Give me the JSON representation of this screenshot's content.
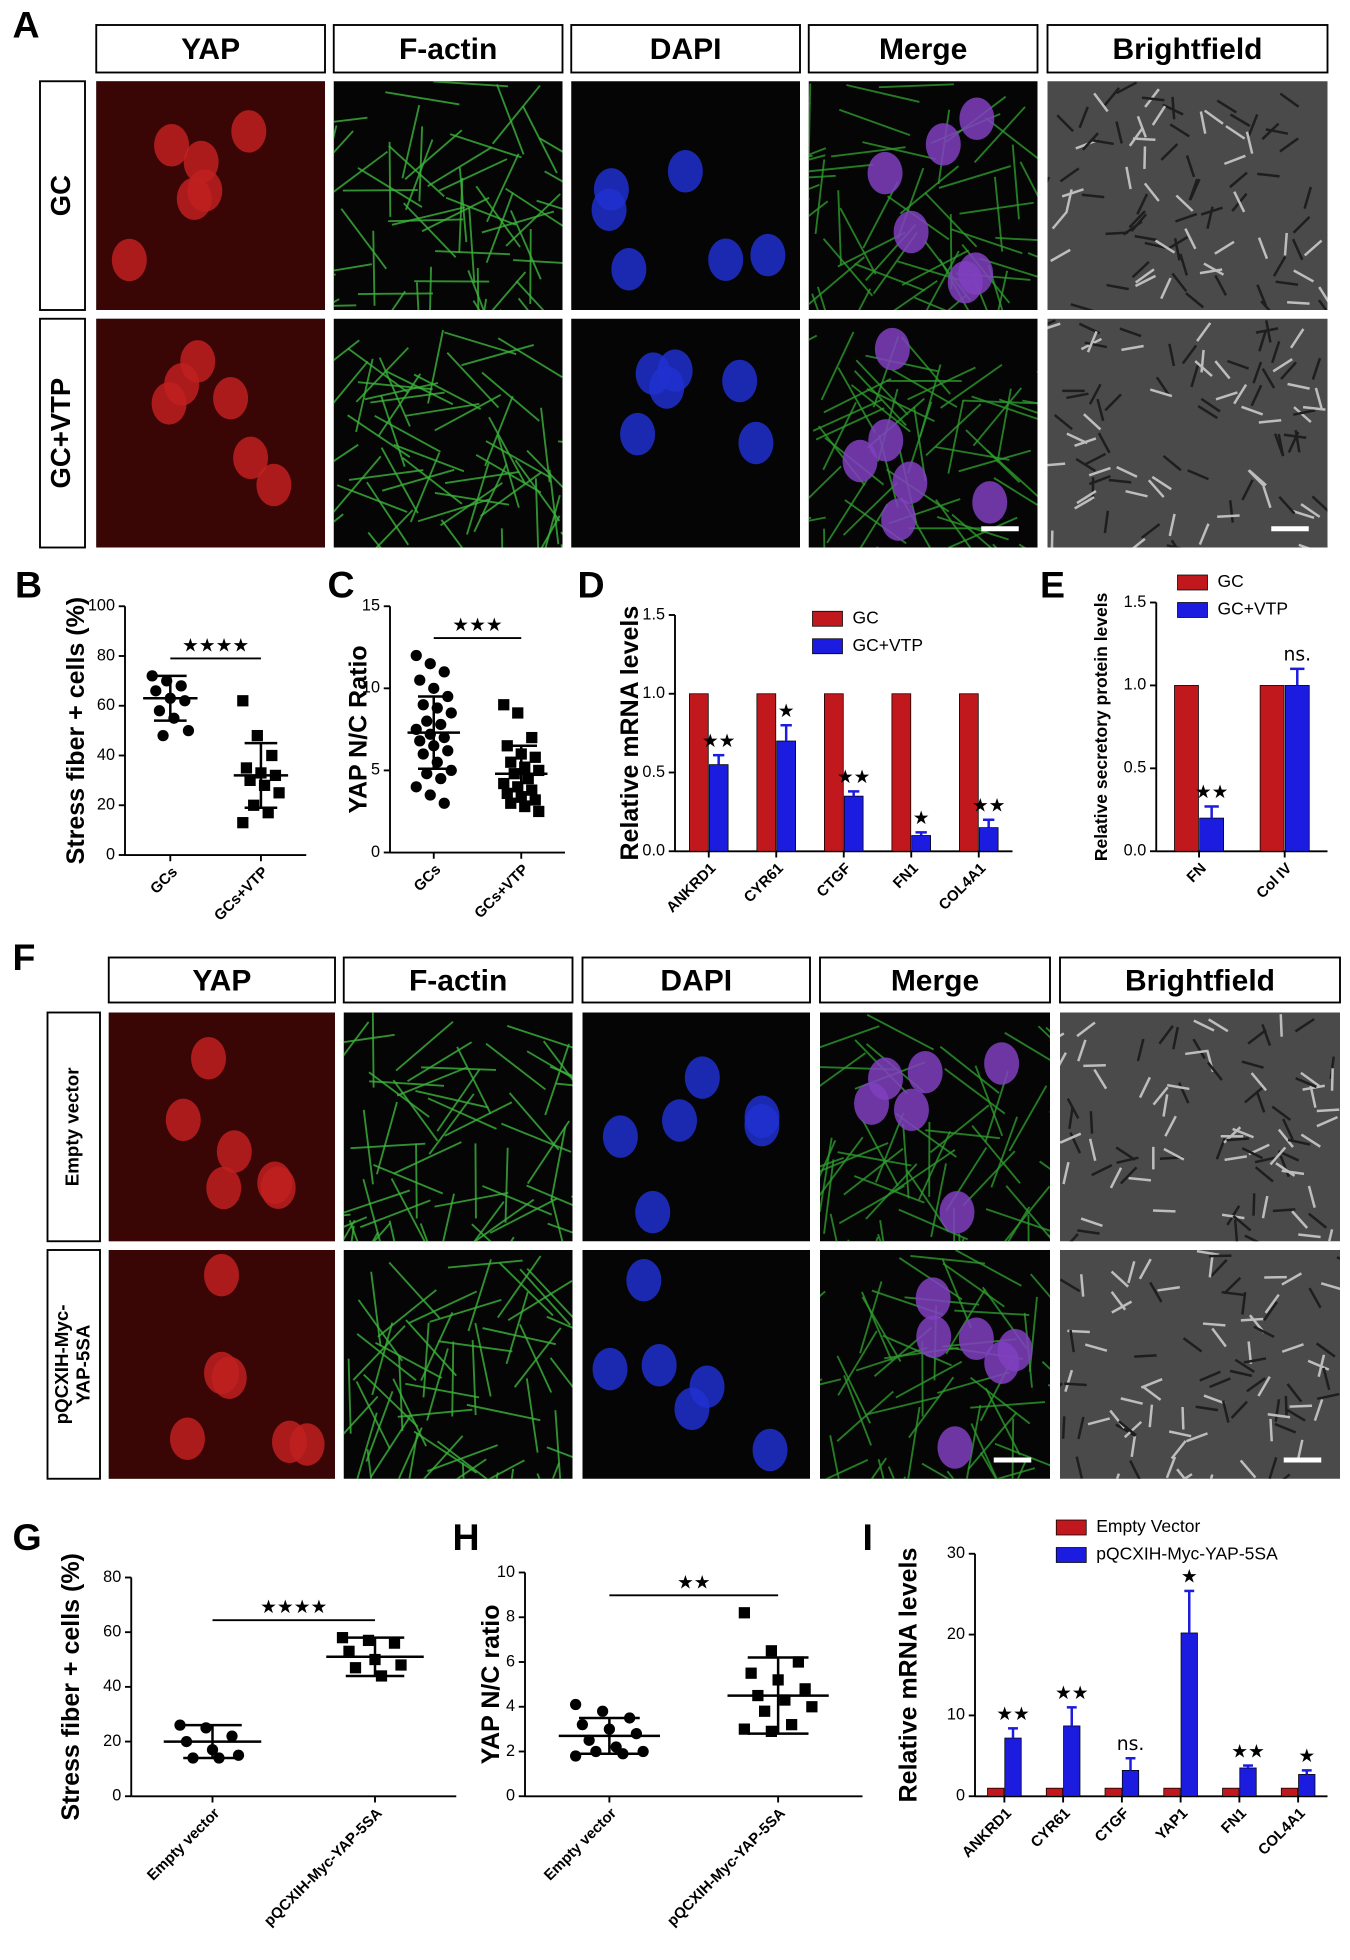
{
  "panel_labels": [
    "A",
    "B",
    "C",
    "D",
    "E",
    "F",
    "G",
    "H",
    "I"
  ],
  "image_panels": [
    {
      "columns": [
        "YAP",
        "F-actin",
        "DAPI",
        "Merge",
        "Brightfield"
      ],
      "rows": [
        [
          "GC"
        ],
        [
          "GC+VTP"
        ]
      ]
    },
    {
      "columns": [
        "YAP",
        "F-actin",
        "DAPI",
        "Merge",
        "Brightfield"
      ],
      "rows": [
        [
          "Empty vector"
        ],
        [
          "pQCXIH-Myc-",
          "YAP-5SA"
        ]
      ]
    }
  ],
  "chart_data": [
    {
      "type": "dotplot",
      "ylabel": "Stress fiber + cells (%)",
      "categories": [
        "GCs",
        "GCs+VTP"
      ],
      "points": [
        [
          72,
          70,
          68,
          66,
          63,
          62,
          58,
          55,
          50,
          48
        ],
        [
          62,
          48,
          40,
          35,
          33,
          32,
          30,
          28,
          25,
          20,
          17,
          13
        ]
      ],
      "means": [
        63,
        32
      ],
      "sds": [
        9,
        13
      ],
      "significance": "★★★★",
      "color": "#000000",
      "ylim": [
        0,
        100
      ],
      "yticks": [
        0,
        20,
        40,
        60,
        80,
        100
      ]
    },
    {
      "type": "dotplot",
      "ylabel": "YAP N/C Ratio",
      "categories": [
        "GCs",
        "GCs+VTP"
      ],
      "points": [
        [
          12,
          11.5,
          11,
          10.5,
          10,
          9.5,
          9,
          8.8,
          8.5,
          8,
          7.8,
          7.5,
          7.2,
          7,
          6.8,
          6.5,
          6.2,
          6,
          5.5,
          5,
          4.8,
          4.5,
          4,
          3.5,
          3
        ],
        [
          9,
          8.5,
          7,
          6.5,
          6,
          5.8,
          5.5,
          5.2,
          5,
          4.8,
          4.5,
          4.2,
          4,
          3.8,
          3.6,
          3.4,
          3.2,
          3,
          2.8,
          2.5
        ]
      ],
      "means": [
        7.3,
        4.8
      ],
      "sds": [
        2.2,
        1.7
      ],
      "significance": "★★★",
      "color": "#000000",
      "ylim": [
        0,
        15
      ],
      "yticks": [
        0,
        5,
        10,
        15
      ]
    },
    {
      "type": "bar",
      "ylabel": "Relative mRNA levels",
      "categories": [
        "ANKRD1",
        "CYR61",
        "CTGF",
        "FN1",
        "COL4A1"
      ],
      "series": [
        {
          "name": "GC",
          "color": "#c0181c",
          "values": [
            1,
            1,
            1,
            1,
            1
          ]
        },
        {
          "name": "GC+VTP",
          "color": "#1c1ce0",
          "values": [
            0.55,
            0.7,
            0.35,
            0.1,
            0.15
          ],
          "errors": [
            0.06,
            0.1,
            0.03,
            0.02,
            0.05
          ],
          "annotations": [
            "★★",
            "★",
            "★★",
            "★",
            "★★"
          ]
        }
      ],
      "ylim": [
        0,
        1.5
      ],
      "yticks": [
        {
          "value": 0,
          "label": "0.0"
        },
        0.5,
        {
          "value": 1,
          "label": "1.0"
        },
        1.5
      ]
    },
    {
      "type": "bar",
      "ylabel": "Relative secretory protein levels",
      "categories": [
        "FN",
        "Col IV"
      ],
      "series": [
        {
          "name": "GC",
          "color": "#c0181c",
          "values": [
            1,
            1
          ]
        },
        {
          "name": "GC+VTP",
          "color": "#1c1ce0",
          "values": [
            0.2,
            1.0
          ],
          "errors": [
            0.07,
            0.1
          ],
          "annotations": [
            "★★",
            "ns."
          ]
        }
      ],
      "ylim": [
        0,
        1.5
      ],
      "yticks": [
        {
          "value": 0,
          "label": "0.0"
        },
        0.5,
        {
          "value": 1,
          "label": "1.0"
        },
        1.5
      ]
    },
    {
      "type": "dotplot",
      "ylabel": "Stress fiber + cells (%)",
      "categories": [
        "Empty vector",
        "pQCXIH-Myc-YAP-5SA"
      ],
      "points": [
        [
          26,
          25,
          22,
          20,
          17,
          15,
          14,
          14
        ],
        [
          58,
          57,
          56,
          53,
          50,
          48,
          47,
          44
        ]
      ],
      "means": [
        20,
        51
      ],
      "sds": [
        6,
        7
      ],
      "significance": "★★★★",
      "color": "#000000",
      "ylim": [
        0,
        80
      ],
      "yticks": [
        0,
        20,
        40,
        60,
        80
      ]
    },
    {
      "type": "dotplot",
      "ylabel": "YAP N/C ratio",
      "categories": [
        "Empty vector",
        "pQCXIH-Myc-YAP-5SA"
      ],
      "points": [
        [
          4.1,
          3.8,
          3.5,
          3.2,
          3,
          2.8,
          2.5,
          2.2,
          2,
          2,
          1.9,
          1.8
        ],
        [
          8.2,
          6.5,
          6,
          5.5,
          5.2,
          4.8,
          4.5,
          4.3,
          4,
          3.8,
          3.2,
          3,
          2.9
        ]
      ],
      "means": [
        2.7,
        4.5
      ],
      "sds": [
        0.8,
        1.7
      ],
      "significance": "★★",
      "color": "#000000",
      "ylim": [
        0,
        10
      ],
      "yticks": [
        0,
        2,
        4,
        6,
        8,
        10
      ]
    },
    {
      "type": "bar",
      "ylabel": "Relative mRNA levels",
      "categories": [
        "ANKRD1",
        "CYR61",
        "CTGF",
        "YAP1",
        "FN1",
        "COL4A1"
      ],
      "series": [
        {
          "name": "Empty Vector",
          "color": "#c0181c",
          "values": [
            1,
            1,
            1,
            1,
            1,
            1
          ]
        },
        {
          "name": "pQCXIH-Myc-YAP-5SA",
          "color": "#1c1ce0",
          "values": [
            7.2,
            8.7,
            3.2,
            20.2,
            3.5,
            2.7
          ],
          "errors": [
            1.2,
            2.3,
            1.5,
            5.2,
            0.3,
            0.5
          ],
          "annotations": [
            "★★",
            "★★",
            "ns.",
            "★",
            "★★",
            "★"
          ]
        }
      ],
      "ylim": [
        0,
        30
      ],
      "yticks": [
        0,
        10,
        20,
        30
      ]
    }
  ]
}
